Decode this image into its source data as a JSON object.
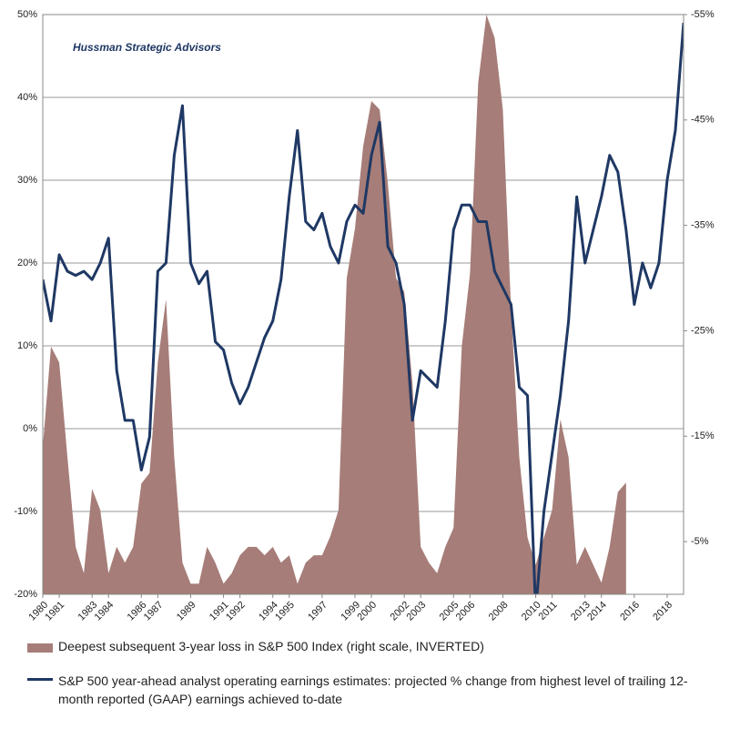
{
  "chart_data": {
    "type": "line",
    "annotation": "Hussman Strategic Advisors",
    "x": [
      1980,
      1980.5,
      1981,
      1981.5,
      1982,
      1982.5,
      1983,
      1983.5,
      1984,
      1984.5,
      1985,
      1985.5,
      1986,
      1986.5,
      1987,
      1987.5,
      1988,
      1988.5,
      1989,
      1989.5,
      1990,
      1990.5,
      1991,
      1991.5,
      1992,
      1992.5,
      1993,
      1993.5,
      1994,
      1994.5,
      1995,
      1995.5,
      1996,
      1996.5,
      1997,
      1997.5,
      1998,
      1998.5,
      1999,
      1999.5,
      2000,
      2000.5,
      2001,
      2001.5,
      2002,
      2002.5,
      2003,
      2003.5,
      2004,
      2004.5,
      2005,
      2005.5,
      2006,
      2006.5,
      2007,
      2007.5,
      2008,
      2008.5,
      2009,
      2009.5,
      2010,
      2010.5,
      2011,
      2011.5,
      2012,
      2012.5,
      2013,
      2013.5,
      2014,
      2014.5,
      2015,
      2015.5,
      2016,
      2016.5,
      2017,
      2017.5,
      2018,
      2018.5,
      2019
    ],
    "series": [
      {
        "name": "Deepest subsequent 3-year loss in S&P 500 Index (right scale, INVERTED)",
        "type": "area",
        "axis": "y2",
        "color": "#a67d78",
        "values": [
          -14,
          -23.5,
          -22,
          -13,
          -4.5,
          -2,
          -10,
          -8,
          -2,
          -4.5,
          -3,
          -4.5,
          -10.5,
          -11.5,
          -22,
          -28,
          -13,
          -3,
          -1,
          -1,
          -4.5,
          -3,
          -1,
          -2,
          -3.7,
          -4.5,
          -4.5,
          -3.7,
          -4.5,
          -3,
          -3.7,
          -1,
          -3,
          -3.7,
          -3.7,
          -5.5,
          -8,
          -30,
          -34.7,
          -42.5,
          -46.8,
          -46,
          -39,
          -30,
          -28.7,
          -20,
          -4.5,
          -3,
          -2,
          -4.5,
          -6.3,
          -23.5,
          -30.4,
          -48.5,
          -55,
          -52.8,
          -46,
          -27,
          -13,
          -5.4,
          -2.8,
          -5.4,
          -8,
          -16.6,
          -13,
          -2.8,
          -4.5,
          -2.8,
          -1.1,
          -4.5,
          -9.7,
          -10.6,
          null,
          null,
          null,
          null,
          null,
          null,
          null
        ]
      },
      {
        "name": "S&P 500 year-ahead analyst operating earnings estimates: projected % change from highest level of trailing 12-month reported (GAAP) earnings achieved to-date",
        "type": "line",
        "axis": "y",
        "color": "#1f3864",
        "values": [
          18,
          13,
          21,
          19,
          18.5,
          19,
          18,
          20,
          23,
          7,
          1,
          1,
          -5,
          -1,
          19,
          20,
          33,
          39,
          20,
          17.5,
          19,
          10.5,
          9.5,
          5.5,
          3,
          5,
          8,
          11,
          13,
          18,
          28,
          36,
          25,
          24,
          26,
          22,
          20,
          25,
          27,
          26,
          33,
          37,
          22,
          20,
          15,
          1,
          7,
          6,
          5,
          13,
          24,
          27,
          27,
          25,
          25,
          19,
          17,
          15,
          5,
          4,
          -22,
          -10,
          -3,
          4,
          13,
          28,
          20,
          24,
          28,
          33,
          31,
          24,
          15,
          20,
          17,
          20,
          30,
          36,
          49
        ]
      }
    ],
    "xlim": [
      1980,
      2019
    ],
    "xticks": [
      1980,
      1981,
      1983,
      1984,
      1986,
      1987,
      1989,
      1991,
      1992,
      1994,
      1995,
      1997,
      1999,
      2000,
      2002,
      2003,
      2005,
      2006,
      2008,
      2010,
      2011,
      2013,
      2014,
      2016,
      2018
    ],
    "ylim": [
      -20,
      50
    ],
    "yticks": [
      {
        "value": -20,
        "label": "-20%"
      },
      {
        "value": -10,
        "label": "-10%"
      },
      {
        "value": 0,
        "label": "0%"
      },
      {
        "value": 10,
        "label": "10%"
      },
      {
        "value": 20,
        "label": "20%"
      },
      {
        "value": 30,
        "label": "30%"
      },
      {
        "value": 40,
        "label": "40%"
      },
      {
        "value": 50,
        "label": "50%"
      }
    ],
    "y2lim": [
      0,
      -55
    ],
    "y2ticks": [
      {
        "value": -55,
        "label": "-55%"
      },
      {
        "value": -45,
        "label": "-45%"
      },
      {
        "value": -35,
        "label": "-35%"
      },
      {
        "value": -25,
        "label": "-25%"
      },
      {
        "value": -15,
        "label": "-15%"
      },
      {
        "value": -5,
        "label": "-5%"
      }
    ],
    "grid": true,
    "legend": "bottom"
  }
}
